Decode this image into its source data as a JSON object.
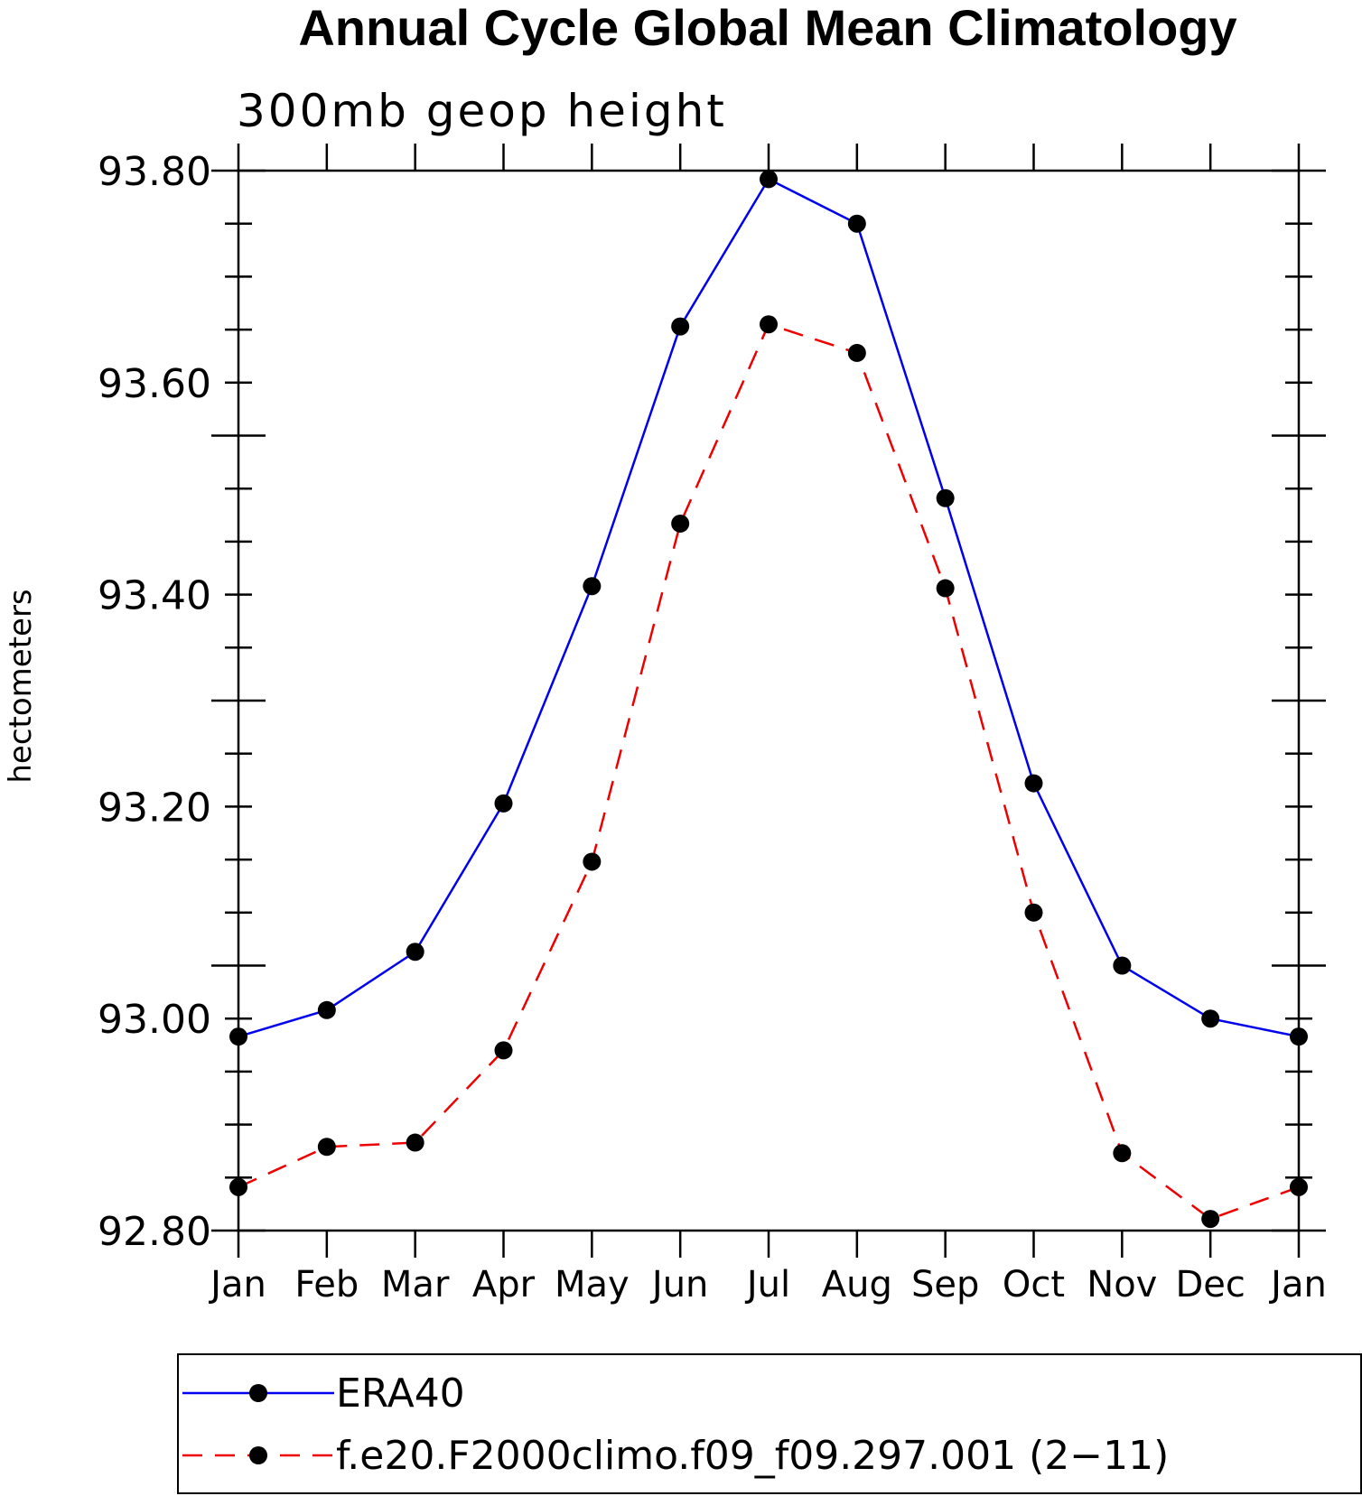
{
  "chart_data": {
    "type": "line",
    "title": "Annual Cycle Global Mean Climatology",
    "subtitle": "300mb geop height",
    "ylabel": "hectometers",
    "xlabel": "",
    "categories": [
      "Jan",
      "Feb",
      "Mar",
      "Apr",
      "May",
      "Jun",
      "Jul",
      "Aug",
      "Sep",
      "Oct",
      "Nov",
      "Dec",
      "Jan"
    ],
    "ylim": [
      92.8,
      93.8
    ],
    "yticks": [
      "93.80",
      "93.60",
      "93.40",
      "93.20",
      "93.00",
      "92.80"
    ],
    "ytick_values": [
      93.8,
      93.6,
      93.4,
      93.2,
      93.0,
      92.8
    ],
    "series": [
      {
        "name": "ERA40",
        "color": "#0000ee",
        "style": "solid",
        "marker": "filled-circle",
        "values": [
          92.983,
          93.008,
          93.063,
          93.203,
          93.408,
          93.653,
          93.792,
          93.75,
          93.491,
          93.222,
          93.05,
          93.0,
          92.983
        ]
      },
      {
        "name": "f.e20.F2000climo.f09_f09.297.001 (2−11)",
        "color": "#ee0000",
        "style": "dashed",
        "marker": "filled-circle",
        "values": [
          92.841,
          92.879,
          92.883,
          92.97,
          93.148,
          93.467,
          93.655,
          93.628,
          93.406,
          93.1,
          92.873,
          92.811,
          92.841
        ]
      }
    ],
    "legend_position": "bottom",
    "grid": false
  }
}
